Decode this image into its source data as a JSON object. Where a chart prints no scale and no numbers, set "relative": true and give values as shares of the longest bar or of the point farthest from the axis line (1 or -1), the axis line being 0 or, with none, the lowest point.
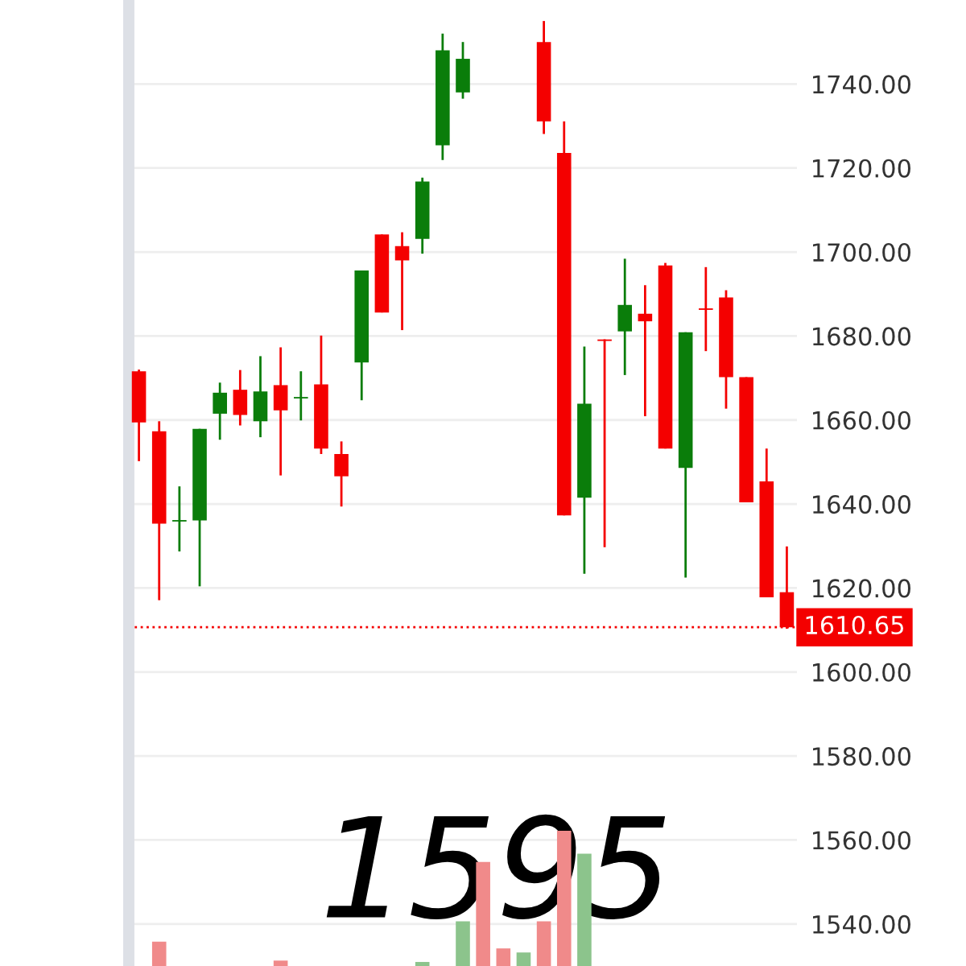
{
  "chart_data": [
    {
      "type": "candlestick",
      "categories": [
        null,
        null,
        null,
        null,
        null,
        null,
        null,
        null,
        null,
        null,
        null,
        null,
        null,
        null,
        null,
        null,
        null,
        null,
        null,
        null,
        null,
        null,
        null,
        null,
        null,
        null,
        null,
        null,
        null,
        null,
        null,
        null,
        null
      ],
      "ohlc": [
        [
          1671.6,
          1672.0,
          1650.2,
          1659.4
        ],
        [
          1657.3,
          1659.7,
          1617.1,
          1635.3
        ],
        [
          1636.0,
          1644.2,
          1628.7,
          1636.2
        ],
        [
          1636.1,
          1657.9,
          1620.4,
          1657.9
        ],
        [
          1661.5,
          1668.9,
          1655.3,
          1666.5
        ],
        [
          1667.2,
          1671.9,
          1658.7,
          1661.2
        ],
        [
          1659.7,
          1675.2,
          1655.9,
          1666.8
        ],
        [
          1668.3,
          1677.3,
          1646.8,
          1662.3
        ],
        [
          1665.3,
          1671.6,
          1659.9,
          1665.5
        ],
        [
          1668.5,
          1680.1,
          1651.9,
          1653.2
        ],
        [
          1651.9,
          1654.9,
          1639.4,
          1646.6
        ],
        [
          1673.7,
          1695.6,
          1664.7,
          1695.6
        ],
        [
          1704.2,
          1704.2,
          1685.6,
          1685.6
        ],
        [
          1701.4,
          1704.7,
          1681.4,
          1698.0
        ],
        [
          1703.1,
          1717.7,
          1699.6,
          1716.8
        ],
        [
          1725.4,
          1752,
          1721.9,
          1748
        ],
        [
          1738.0,
          1750,
          1736.5,
          1746
        ],
        null,
        null,
        null,
        [
          1750,
          1755,
          1728.1,
          1731.1
        ],
        [
          1723.6,
          1731.1,
          1637.3,
          1637.3
        ],
        [
          1641.5,
          1677.5,
          1623.4,
          1663.9
        ],
        [
          1679.2,
          1679.2,
          1629.7,
          1679.0
        ],
        [
          1681.1,
          1698.4,
          1670.7,
          1687.4
        ],
        [
          1685.3,
          1692.1,
          1660.9,
          1683.5
        ],
        [
          1696.8,
          1697.4,
          1653.2,
          1653.2
        ],
        [
          1648.6,
          1680.9,
          1622.5,
          1680.9
        ],
        [
          1686.6,
          1696.4,
          1676.4,
          1686.4
        ],
        [
          1689.2,
          1690.9,
          1662.7,
          1670.2
        ],
        [
          1670.2,
          1670.2,
          1640.4,
          1640.4
        ],
        [
          1645.4,
          1653.2,
          1617.8,
          1617.8
        ],
        [
          1619.0,
          1629.9,
          1610.3,
          1610.65
        ]
      ],
      "colors": [
        "#f40000",
        "#f40000",
        "#0a7d0a",
        "#0a7d0a",
        "#0a7d0a",
        "#f40000",
        "#0a7d0a",
        "#f40000",
        "#0a7d0a",
        "#f40000",
        "#f40000",
        "#0a7d0a",
        "#f40000",
        "#f40000",
        "#0a7d0a",
        "#0a7d0a",
        "#0a7d0a",
        null,
        null,
        null,
        "#f40000",
        "#f40000",
        "#0a7d0a",
        "#f40000",
        "#0a7d0a",
        "#f40000",
        "#f40000",
        "#0a7d0a",
        "#f40000",
        "#f40000",
        "#f40000",
        "#f40000",
        "#f40000"
      ],
      "ylim": [
        1530,
        1760
      ],
      "yticks": [
        {
          "value": 1540,
          "label": "1540.00"
        },
        {
          "value": 1560,
          "label": "1560.00"
        },
        {
          "value": 1580,
          "label": "1580.00"
        },
        {
          "value": 1600,
          "label": "1600.00"
        },
        {
          "value": 1620,
          "label": "1620.00"
        },
        {
          "value": 1640,
          "label": "1640.00"
        },
        {
          "value": 1660,
          "label": "1660.00"
        },
        {
          "value": 1680,
          "label": "1680.00"
        },
        {
          "value": 1700,
          "label": "1700.00"
        },
        {
          "value": 1720,
          "label": "1720.00"
        },
        {
          "value": 1740,
          "label": "1740.00"
        }
      ],
      "grid": "y",
      "ref_lines": [
        {
          "axis": "y",
          "value": 1610.65,
          "label": "1610.65",
          "color": "#f40000",
          "line_style": "dotted"
        }
      ],
      "annotations": [
        "1595"
      ]
    },
    {
      "type": "bar",
      "relative": true,
      "categories": [
        null,
        null,
        null,
        null,
        null,
        null,
        null,
        null,
        null,
        null,
        null,
        null,
        null,
        null,
        null,
        null,
        null,
        null,
        null,
        null,
        null,
        null,
        null,
        null,
        null,
        null,
        null,
        null,
        null,
        null,
        null,
        null,
        null
      ],
      "values": [
        null,
        0.18,
        null,
        null,
        null,
        null,
        null,
        0.04,
        null,
        null,
        null,
        null,
        null,
        null,
        0.03,
        null,
        0.33,
        0.77,
        0.13,
        0.1,
        0.33,
        1,
        0.83,
        null,
        null,
        null,
        null,
        null,
        null,
        null,
        null,
        null,
        null
      ],
      "colors": [
        null,
        "#f08a8a",
        null,
        null,
        null,
        null,
        null,
        "#f08a8a",
        null,
        null,
        null,
        null,
        null,
        null,
        "#8cc48c",
        null,
        "#8cc48c",
        "#f08a8a",
        "#f08a8a",
        "#8cc48c",
        "#f08a8a",
        "#f08a8a",
        "#8cc48c",
        null,
        null,
        null,
        null,
        null,
        null,
        null,
        null,
        null,
        null
      ]
    }
  ]
}
